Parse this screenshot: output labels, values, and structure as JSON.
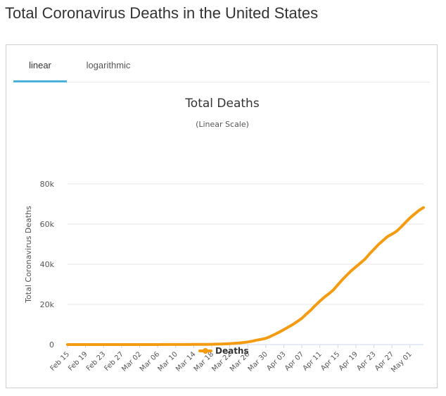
{
  "page": {
    "title": "Total Coronavirus Deaths in the United States"
  },
  "tabs": [
    {
      "label": "linear",
      "active": true
    },
    {
      "label": "logarithmic",
      "active": false
    }
  ],
  "colors": {
    "series": "#f39c12",
    "tab_accent": "#4ab2d9",
    "grid": "#e6e6e6"
  },
  "chart_data": {
    "type": "line",
    "title": "Total Deaths",
    "subtitle": "(Linear Scale)",
    "ylabel": "Total Coronavirus Deaths",
    "xlabel": "",
    "ylim": [
      0,
      80000
    ],
    "yticks": [
      0,
      20000,
      40000,
      60000,
      80000
    ],
    "ytick_labels": [
      "0",
      "20k",
      "40k",
      "60k",
      "80k"
    ],
    "xtick_labels": [
      "Feb 15",
      "Feb 19",
      "Feb 23",
      "Feb 27",
      "Mar 02",
      "Mar 06",
      "Mar 10",
      "Mar 14",
      "Mar 18",
      "Mar 22",
      "Mar 26",
      "Mar 30",
      "Apr 03",
      "Apr 07",
      "Apr 11",
      "Apr 15",
      "Apr 19",
      "Apr 23",
      "Apr 27",
      "May 01"
    ],
    "grid": true,
    "legend_position": "bottom-center",
    "series": [
      {
        "name": "Deaths",
        "x": [
          "Feb 15",
          "Feb 16",
          "Feb 17",
          "Feb 18",
          "Feb 19",
          "Feb 20",
          "Feb 21",
          "Feb 22",
          "Feb 23",
          "Feb 24",
          "Feb 25",
          "Feb 26",
          "Feb 27",
          "Feb 28",
          "Feb 29",
          "Mar 01",
          "Mar 02",
          "Mar 03",
          "Mar 04",
          "Mar 05",
          "Mar 06",
          "Mar 07",
          "Mar 08",
          "Mar 09",
          "Mar 10",
          "Mar 11",
          "Mar 12",
          "Mar 13",
          "Mar 14",
          "Mar 15",
          "Mar 16",
          "Mar 17",
          "Mar 18",
          "Mar 19",
          "Mar 20",
          "Mar 21",
          "Mar 22",
          "Mar 23",
          "Mar 24",
          "Mar 25",
          "Mar 26",
          "Mar 27",
          "Mar 28",
          "Mar 29",
          "Mar 30",
          "Mar 31",
          "Apr 01",
          "Apr 02",
          "Apr 03",
          "Apr 04",
          "Apr 05",
          "Apr 06",
          "Apr 07",
          "Apr 08",
          "Apr 09",
          "Apr 10",
          "Apr 11",
          "Apr 12",
          "Apr 13",
          "Apr 14",
          "Apr 15",
          "Apr 16",
          "Apr 17",
          "Apr 18",
          "Apr 19",
          "Apr 20",
          "Apr 21",
          "Apr 22",
          "Apr 23",
          "Apr 24",
          "Apr 25",
          "Apr 26",
          "Apr 27",
          "Apr 28",
          "Apr 29",
          "Apr 30",
          "May 01",
          "May 02",
          "May 03",
          "May 04"
        ],
        "values": [
          0,
          0,
          0,
          0,
          0,
          0,
          0,
          0,
          0,
          0,
          0,
          0,
          0,
          0,
          1,
          1,
          6,
          9,
          11,
          12,
          15,
          19,
          22,
          26,
          30,
          38,
          41,
          48,
          56,
          62,
          85,
          108,
          150,
          200,
          260,
          340,
          450,
          580,
          780,
          1030,
          1300,
          1700,
          2200,
          2600,
          3100,
          4000,
          5100,
          6200,
          7400,
          8700,
          10000,
          11500,
          13100,
          15200,
          17200,
          19500,
          21600,
          23600,
          25300,
          27200,
          29800,
          32300,
          34600,
          36800,
          38700,
          40600,
          42500,
          45100,
          47400,
          49800,
          51800,
          53800,
          55000,
          56400,
          58500,
          60800,
          63100,
          65000,
          66800,
          68200
        ]
      }
    ]
  }
}
